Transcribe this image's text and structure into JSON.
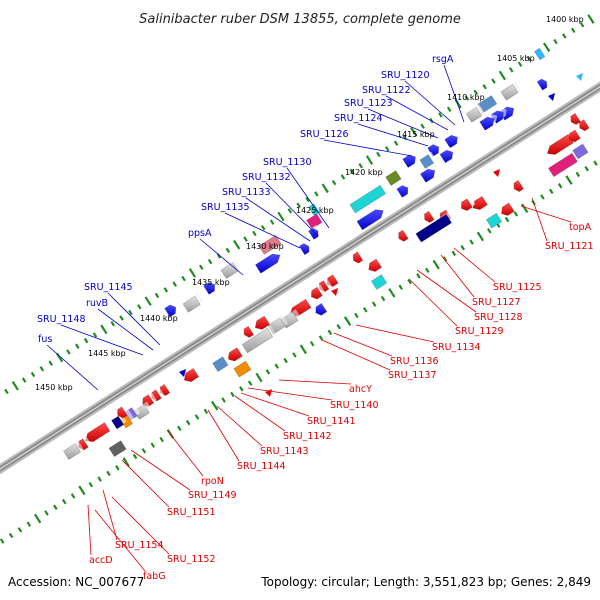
{
  "title": "Salinibacter ruber DSM 13855, complete genome",
  "footer": {
    "accession": "Accession: NC_007677",
    "summary": "Topology: circular; Length: 3,551,823 bp; Genes: 2,849"
  },
  "colors": {
    "forward_label": "#0000cc",
    "reverse_label": "#dd0000",
    "backbone": "#8a8a8a",
    "tick": "#1e8c1e"
  },
  "kbp_ticks": [
    "1400 kbp",
    "1405 kbp",
    "1410 kbp",
    "1415 kbp",
    "1420 kbp",
    "1425 kbp",
    "1430 kbp",
    "1435 kbp",
    "1440 kbp",
    "1445 kbp",
    "1450 kbp"
  ],
  "forward_labels": [
    "rsgA",
    "SRU_1120",
    "SRU_1122",
    "SRU_1123",
    "SRU_1124",
    "SRU_1126",
    "SRU_1130",
    "SRU_1132",
    "SRU_1133",
    "SRU_1135",
    "ppsA",
    "SRU_1145",
    "ruvB",
    "SRU_1148",
    "fus"
  ],
  "reverse_labels": [
    "topA",
    "SRU_1121",
    "SRU_1125",
    "SRU_1127",
    "SRU_1128",
    "SRU_1129",
    "SRU_1134",
    "SRU_1136",
    "SRU_1137",
    "ahcY",
    "SRU_1140",
    "SRU_1141",
    "SRU_1142",
    "SRU_1143",
    "SRU_1144",
    "rpoN",
    "SRU_1149",
    "SRU_1151",
    "SRU_1154",
    "SRU_1152",
    "accD",
    "fabG"
  ]
}
